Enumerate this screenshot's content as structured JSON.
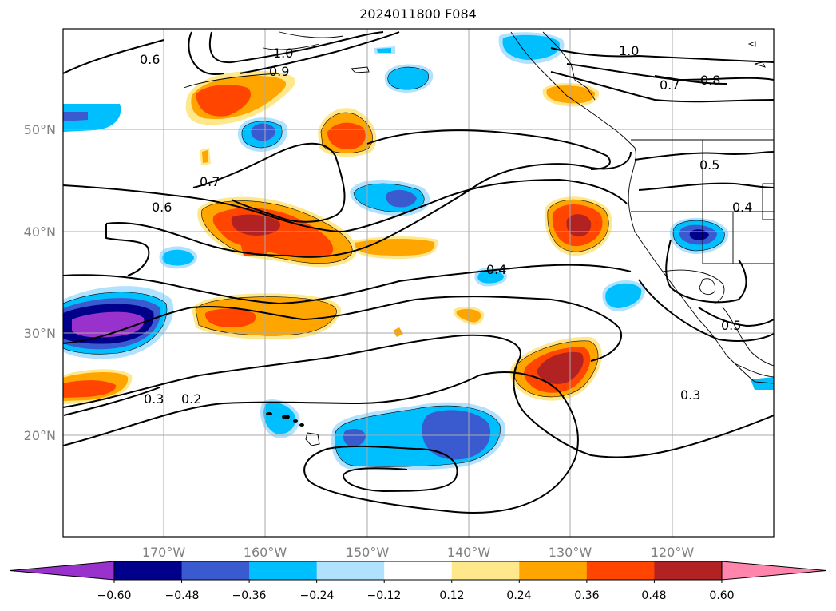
{
  "title": "2024011800 F084",
  "axes": {
    "lon_labels": [
      "170°W",
      "160°W",
      "150°W",
      "140°W",
      "130°W",
      "120°W"
    ],
    "lat_labels": [
      "50°N",
      "40°N",
      "30°N",
      "20°N"
    ]
  },
  "contour_labels": [
    "0.6",
    "0.7",
    "0.6",
    "1.0",
    "0.9",
    "1.0",
    "0.7",
    "0.8",
    "0.5",
    "0.4",
    "0.4",
    "0.3",
    "0.2",
    "0.3",
    "0.5"
  ],
  "colorbar": {
    "ticks": [
      "−0.60",
      "−0.48",
      "−0.36",
      "−0.24",
      "−0.12",
      "0.12",
      "0.24",
      "0.36",
      "0.48",
      "0.60"
    ],
    "colors": [
      "#9932cc",
      "#00008b",
      "#3a5bd0",
      "#00bfff",
      "#b0e2ff",
      "#ffffff",
      "#ffe88c",
      "#ffa500",
      "#ff4500",
      "#b22222",
      "#ff85ad"
    ]
  },
  "colors": {
    "neg_deep": "#9932cc",
    "neg_navy": "#00008b",
    "neg_royal": "#3a5bd0",
    "neg_sky": "#00bfff",
    "neg_light": "#b0e2ff",
    "pos_light": "#ffe88c",
    "pos_orange": "#ffa500",
    "pos_red": "#ff4500",
    "pos_dark": "#b22222"
  }
}
